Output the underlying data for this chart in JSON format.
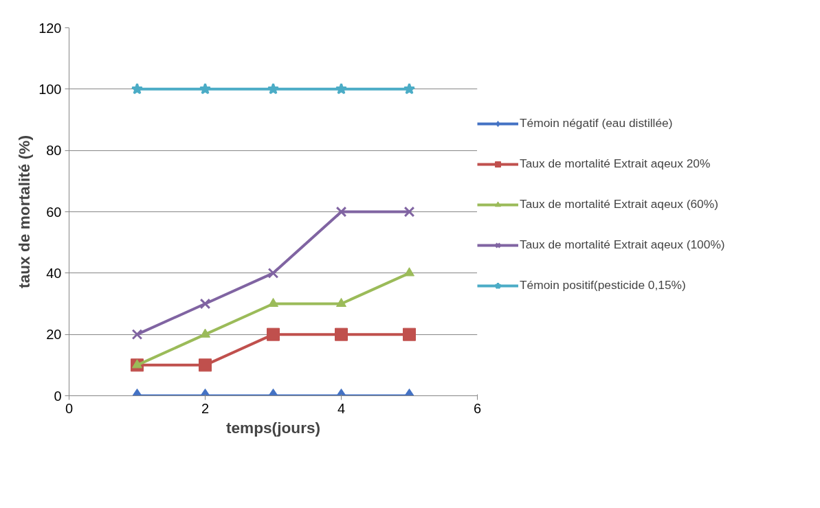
{
  "chart_data": {
    "type": "line",
    "xlabel": "temps(jours)",
    "ylabel": "taux de mortalité (%)",
    "x": [
      1,
      2,
      3,
      4,
      5
    ],
    "series": [
      {
        "name": "Témoin négatif (eau distillée)",
        "color": "#4472c4",
        "marker": "diamond",
        "values": [
          0,
          0,
          0,
          0,
          0
        ]
      },
      {
        "name": "Taux de mortalité Extrait aqeux 20%",
        "color": "#c0504d",
        "marker": "square",
        "values": [
          10,
          10,
          20,
          20,
          20
        ]
      },
      {
        "name": "Taux de mortalité Extrait aqeux (60%)",
        "color": "#9bbb59",
        "marker": "triangle",
        "values": [
          10,
          20,
          30,
          30,
          40
        ]
      },
      {
        "name": "Taux de mortalité Extrait aqeux (100%)",
        "color": "#8064a2",
        "marker": "cross",
        "values": [
          20,
          30,
          40,
          60,
          60
        ]
      },
      {
        "name": "Témoin positif(pesticide 0,15%)",
        "color": "#4bacc6",
        "marker": "star",
        "values": [
          100,
          100,
          100,
          100,
          100
        ]
      }
    ],
    "xlim": [
      0,
      6
    ],
    "xticks": [
      0,
      2,
      4,
      6
    ],
    "ylim": [
      0,
      120
    ],
    "yticks": [
      0,
      20,
      40,
      60,
      80,
      100,
      120
    ],
    "grid": "y",
    "legend": "right",
    "line_style": "solid"
  }
}
